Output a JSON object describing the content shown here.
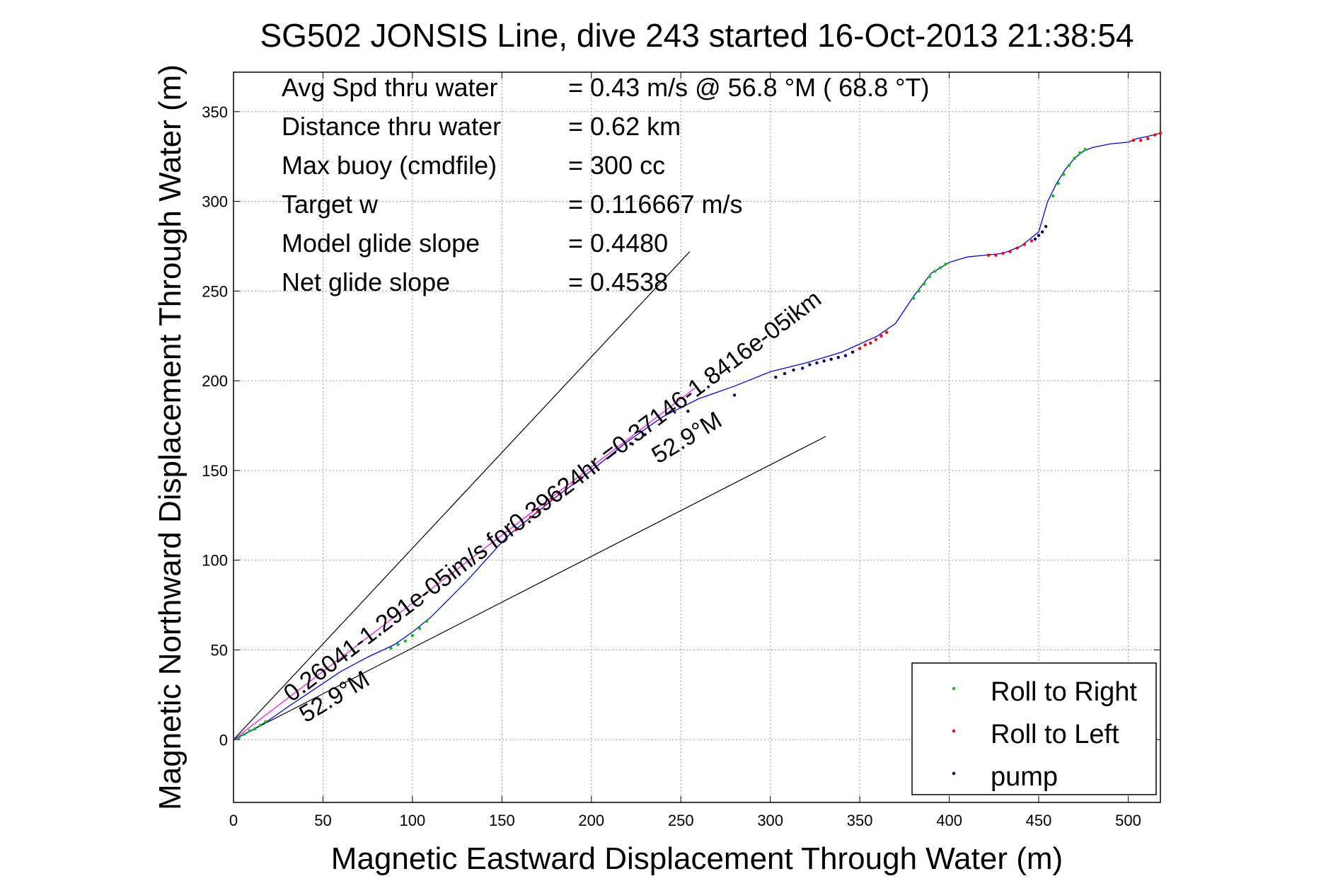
{
  "chart_data": {
    "type": "scatter",
    "title": "SG502 JONSIS Line, dive 243 started 16-Oct-2013 21:38:54",
    "xlabel": "Magnetic Eastward Displacement Through Water (m)",
    "ylabel": "Magnetic Northward Displacement Through Water (m)",
    "xlim": [
      0,
      518
    ],
    "ylim": [
      -35,
      372
    ],
    "xticks": [
      0,
      50,
      100,
      150,
      200,
      250,
      300,
      350,
      400,
      450,
      500
    ],
    "yticks": [
      0,
      50,
      100,
      150,
      200,
      250,
      300,
      350
    ],
    "grid": true,
    "legend_position": "bottom-right",
    "stats": [
      {
        "label": "Avg Spd thru water",
        "value": "=  0.43 m/s @  56.8 °M ( 68.8 °T)"
      },
      {
        "label": "Distance thru water",
        "value": "=  0.62 km"
      },
      {
        "label": "Max buoy (cmdfile)",
        "value": "= 300 cc"
      },
      {
        "label": "Target w",
        "value": "= 0.116667 m/s"
      },
      {
        "label": "Model glide slope",
        "value": "= 0.4480"
      },
      {
        "label": "Net glide slope",
        "value": "= 0.4538"
      }
    ],
    "annotations": {
      "current_label": "0.26041-1.291e-05im/s for0.39624hr =0.37146-1.8416e-05ikm",
      "heading_label_1": "52.9°M",
      "heading_label_2": "52.9°M"
    },
    "reference_lines": [
      {
        "name": "wedge-upper",
        "x": [
          0,
          255
        ],
        "y": [
          0,
          272
        ],
        "color": "#000000"
      },
      {
        "name": "wedge-lower",
        "x": [
          0,
          331
        ],
        "y": [
          0,
          169
        ],
        "color": "#000000"
      },
      {
        "name": "current-vector",
        "x": [
          0,
          258
        ],
        "y": [
          0,
          196
        ],
        "color": "#ff00ff"
      }
    ],
    "track": {
      "color": "#0000ff",
      "x": [
        0,
        10,
        20,
        30,
        45,
        60,
        75,
        90,
        100,
        110,
        120,
        130,
        140,
        150,
        155,
        165,
        180,
        200,
        220,
        240,
        260,
        280,
        300,
        320,
        340,
        360,
        370,
        380,
        390,
        400,
        410,
        420,
        430,
        440,
        450,
        455,
        460,
        465,
        470,
        475,
        480,
        490,
        500,
        505,
        510,
        518
      ],
      "y": [
        0,
        5,
        11,
        18,
        28,
        38,
        46,
        53,
        60,
        68,
        78,
        88,
        99,
        110,
        115,
        123,
        135,
        150,
        166,
        180,
        190,
        197,
        205,
        210,
        216,
        225,
        232,
        247,
        260,
        266,
        269,
        270,
        271,
        275,
        283,
        300,
        310,
        318,
        324,
        328,
        330,
        332,
        333,
        335,
        336,
        338
      ]
    },
    "series": [
      {
        "name": "Roll to Right",
        "color": "#00cc00",
        "x": [
          3,
          6,
          9,
          12,
          15,
          18,
          88,
          92,
          96,
          100,
          104,
          108,
          380,
          383,
          386,
          389,
          392,
          395,
          398,
          458,
          461,
          464,
          467,
          470,
          473,
          476
        ],
        "y": [
          1,
          3,
          5,
          6,
          8,
          10,
          51,
          53,
          55,
          58,
          62,
          66,
          246,
          250,
          254,
          258,
          261,
          263,
          265,
          303,
          310,
          315,
          320,
          324,
          327,
          329
        ]
      },
      {
        "name": "Roll to Left",
        "color": "#ff0000",
        "x": [
          158,
          162,
          166,
          170,
          174,
          178,
          182,
          186,
          190,
          194,
          350,
          353,
          356,
          359,
          362,
          365,
          422,
          426,
          430,
          434,
          438,
          442,
          446,
          503,
          507,
          511,
          515,
          518
        ],
        "y": [
          117,
          120,
          124,
          127,
          131,
          134,
          137,
          140,
          143,
          146,
          218,
          220,
          221,
          223,
          225,
          227,
          270,
          270,
          271,
          272,
          274,
          276,
          278,
          334,
          334,
          335,
          337,
          338
        ]
      },
      {
        "name": "pump",
        "color": "#000066",
        "x": [
          222,
          230,
          254,
          280,
          303,
          308,
          313,
          318,
          322,
          326,
          330,
          334,
          338,
          342,
          346,
          448,
          450,
          452,
          454
        ],
        "y": [
          165,
          170,
          183,
          192,
          202,
          204,
          206,
          207,
          209,
          210,
          211,
          212,
          213,
          214,
          216,
          279,
          281,
          283,
          286
        ]
      }
    ]
  }
}
